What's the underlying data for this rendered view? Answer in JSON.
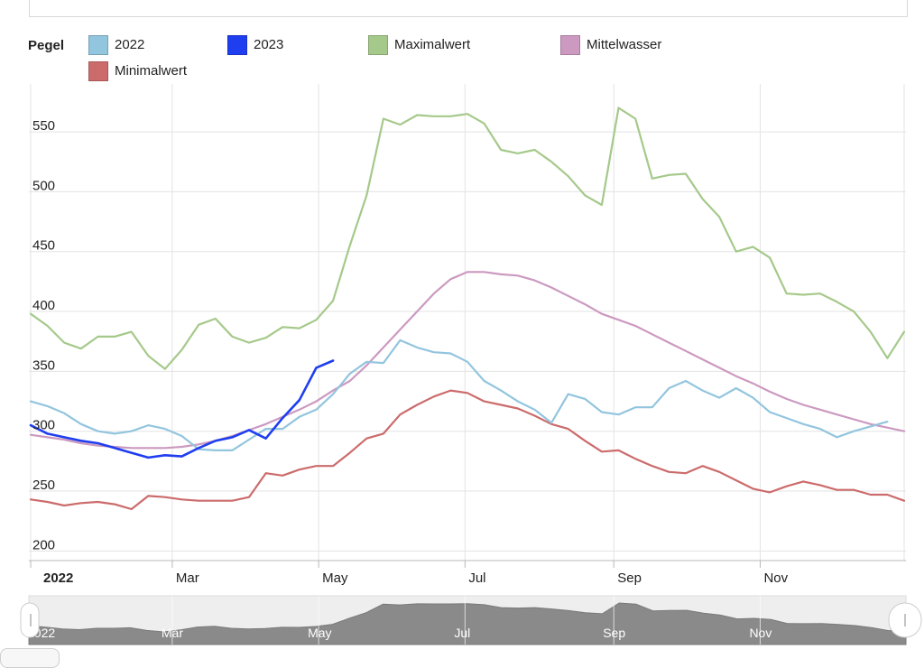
{
  "legend": {
    "title": "Pegel",
    "items": [
      {
        "label": "2022",
        "color": "#92c5de"
      },
      {
        "label": "2023",
        "color": "#1f3ef0"
      },
      {
        "label": "Maximalwert",
        "color": "#a5c98a"
      },
      {
        "label": "Mittelwasser",
        "color": "#cc99c0"
      },
      {
        "label": "Minimalwert",
        "color": "#cc6b6b"
      }
    ]
  },
  "chart_data": {
    "type": "line",
    "x_axis": {
      "type": "date",
      "range": [
        "2022-01-01",
        "2022-12-31"
      ],
      "ticks": [
        {
          "date": "2022-01-01",
          "label": "2022",
          "bold": true
        },
        {
          "date": "2022-03-01",
          "label": "Mar"
        },
        {
          "date": "2022-05-01",
          "label": "May"
        },
        {
          "date": "2022-07-01",
          "label": "Jul"
        },
        {
          "date": "2022-09-01",
          "label": "Sep"
        },
        {
          "date": "2022-11-01",
          "label": "Nov"
        }
      ]
    },
    "y_axis": {
      "range": [
        192,
        590
      ],
      "ticks": [
        200,
        250,
        300,
        350,
        400,
        450,
        500,
        550
      ]
    },
    "grid": true,
    "legend_position": "top",
    "dates": [
      "2022-01-01",
      "2022-01-08",
      "2022-01-15",
      "2022-01-22",
      "2022-01-29",
      "2022-02-05",
      "2022-02-12",
      "2022-02-19",
      "2022-02-26",
      "2022-03-05",
      "2022-03-12",
      "2022-03-19",
      "2022-03-26",
      "2022-04-02",
      "2022-04-09",
      "2022-04-16",
      "2022-04-23",
      "2022-04-30",
      "2022-05-07",
      "2022-05-14",
      "2022-05-21",
      "2022-05-28",
      "2022-06-04",
      "2022-06-11",
      "2022-06-18",
      "2022-06-25",
      "2022-07-02",
      "2022-07-09",
      "2022-07-16",
      "2022-07-23",
      "2022-07-30",
      "2022-08-06",
      "2022-08-13",
      "2022-08-20",
      "2022-08-27",
      "2022-09-03",
      "2022-09-10",
      "2022-09-17",
      "2022-09-24",
      "2022-10-01",
      "2022-10-08",
      "2022-10-15",
      "2022-10-22",
      "2022-10-29",
      "2022-11-05",
      "2022-11-12",
      "2022-11-19",
      "2022-11-26",
      "2022-12-03",
      "2022-12-10",
      "2022-12-17",
      "2022-12-24",
      "2022-12-31"
    ],
    "series": [
      {
        "name": "Maximalwert",
        "color": "#a5c98a",
        "values": [
          398,
          388,
          374,
          369,
          379,
          379,
          383,
          363,
          352,
          368,
          389,
          394,
          379,
          374,
          378,
          387,
          386,
          393,
          409,
          455,
          497,
          561,
          556,
          564,
          563,
          563,
          565,
          557,
          535,
          532,
          535,
          525,
          513,
          497,
          489,
          570,
          561,
          511,
          514,
          515,
          494,
          479,
          450,
          454,
          445,
          415,
          414,
          415,
          408,
          400,
          383,
          361,
          383
        ]
      },
      {
        "name": "Mittelwasser",
        "color": "#cc99c0",
        "values": [
          297,
          295,
          293,
          290,
          288,
          287,
          286,
          286,
          286,
          287,
          289,
          292,
          296,
          301,
          306,
          312,
          318,
          325,
          334,
          342,
          355,
          370,
          385,
          400,
          415,
          427,
          433,
          433,
          431,
          430,
          426,
          420,
          413,
          406,
          398,
          393,
          388,
          381,
          374,
          367,
          360,
          353,
          346,
          340,
          333,
          327,
          322,
          318,
          314,
          310,
          306,
          303,
          300
        ]
      },
      {
        "name": "2022",
        "color": "#92c5de",
        "values": [
          325,
          321,
          315,
          306,
          300,
          298,
          300,
          305,
          302,
          296,
          285,
          284,
          284,
          293,
          302,
          302,
          312,
          318,
          331,
          348,
          358,
          357,
          376,
          370,
          366,
          365,
          358,
          342,
          334,
          325,
          318,
          307,
          331,
          327,
          316,
          314,
          320,
          320,
          336,
          342,
          334,
          328,
          336,
          328,
          316,
          311,
          306,
          302,
          295,
          300,
          304,
          308,
          null
        ]
      },
      {
        "name": "2023",
        "color": "#1f3ef0",
        "values": [
          305,
          298,
          295,
          292,
          290,
          286,
          282,
          278,
          280,
          279,
          286,
          292,
          295,
          301,
          294,
          311,
          326,
          353,
          359,
          null,
          null,
          null,
          null,
          null,
          null,
          null,
          null,
          null,
          null,
          null,
          null,
          null,
          null,
          null,
          null,
          null,
          null,
          null,
          null,
          null,
          null,
          null,
          null,
          null,
          null,
          null,
          null,
          null,
          null,
          null,
          null,
          null,
          null
        ]
      },
      {
        "name": "Minimalwert",
        "color": "#cc6b6b",
        "values": [
          243,
          241,
          238,
          240,
          241,
          239,
          235,
          246,
          245,
          243,
          242,
          242,
          242,
          245,
          265,
          263,
          268,
          271,
          271,
          282,
          294,
          298,
          314,
          322,
          329,
          334,
          332,
          325,
          322,
          319,
          313,
          306,
          302,
          292,
          283,
          284,
          277,
          271,
          266,
          265,
          271,
          266,
          259,
          252,
          249,
          254,
          258,
          255,
          251,
          251,
          247,
          247,
          242
        ]
      }
    ],
    "navigator": {
      "ticks": [
        "2022",
        "Mar",
        "May",
        "Jul",
        "Sep",
        "Nov"
      ]
    }
  }
}
